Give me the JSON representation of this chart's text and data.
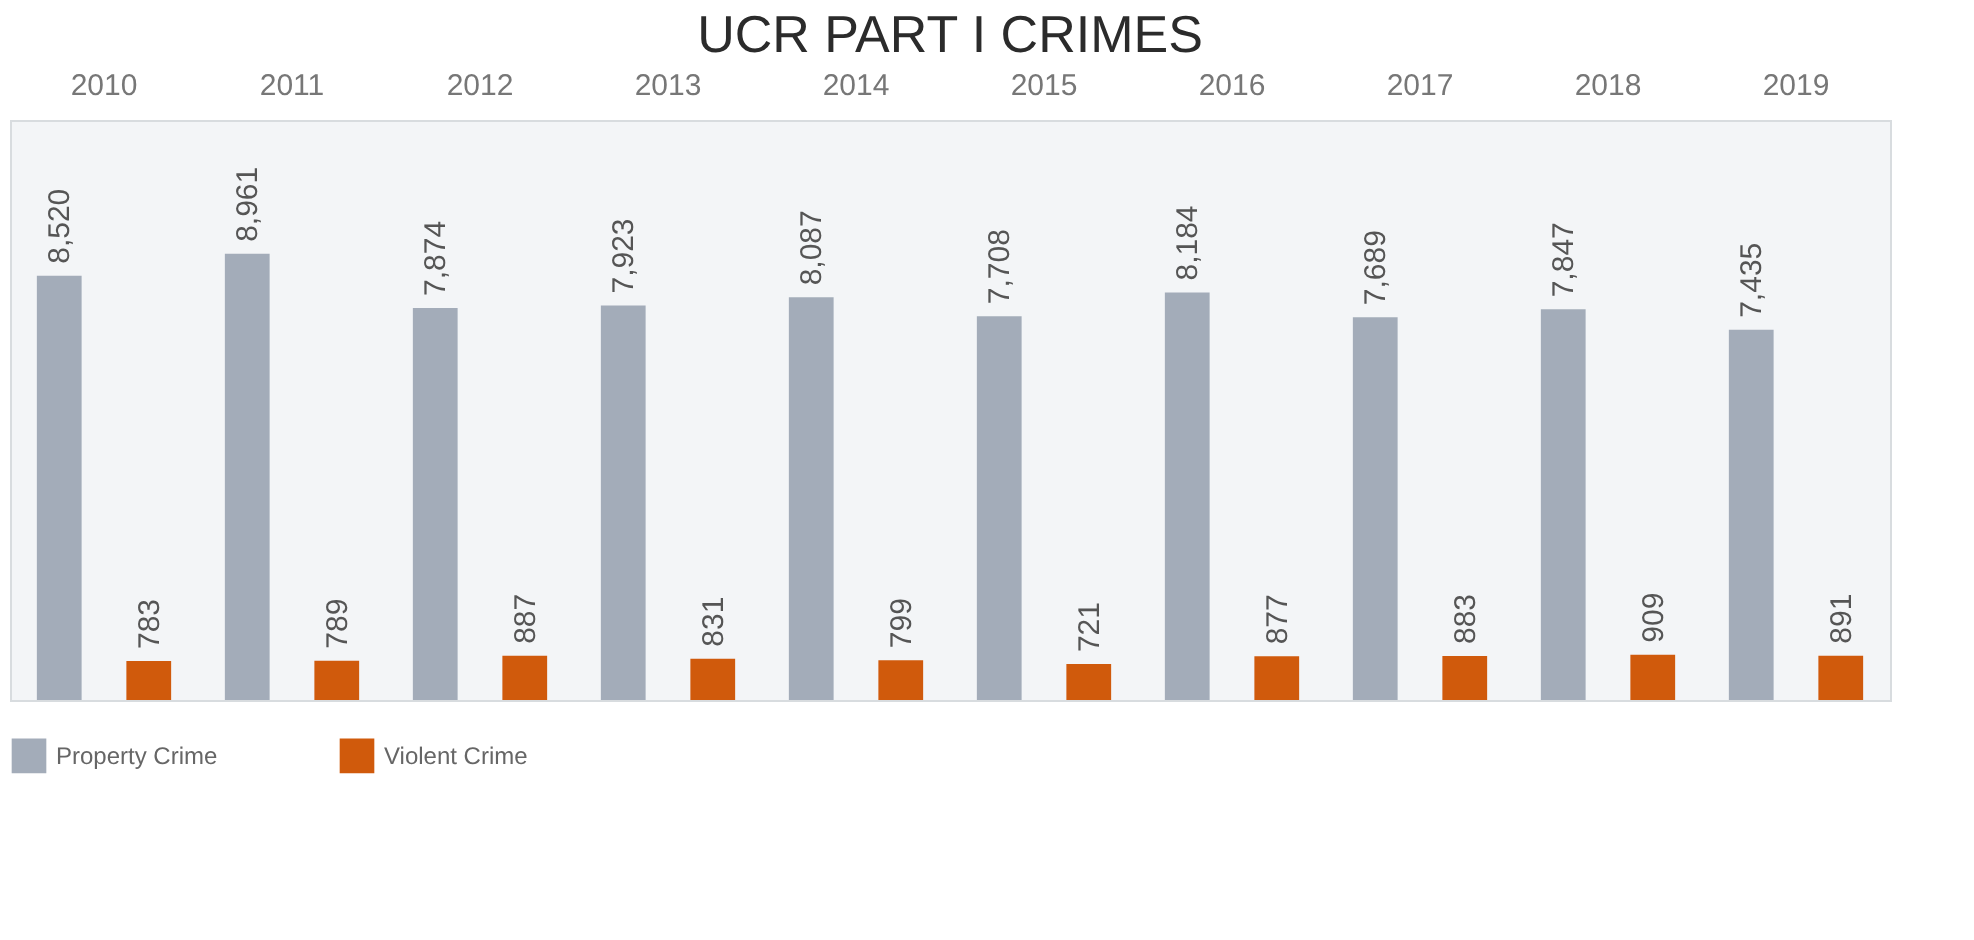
{
  "chart_data": {
    "type": "bar",
    "title": "UCR PART I CRIMES",
    "categories": [
      "2010",
      "2011",
      "2012",
      "2013",
      "2014",
      "2015",
      "2016",
      "2017",
      "2018",
      "2019"
    ],
    "series": [
      {
        "name": "Property Crime",
        "color": "#a3acb9",
        "values": [
          8520,
          8961,
          7874,
          7923,
          8087,
          7708,
          8184,
          7689,
          7847,
          7435
        ],
        "value_labels": [
          "8,520",
          "8,961",
          "7,874",
          "7,923",
          "8,087",
          "7,708",
          "8,184",
          "7,689",
          "7,847",
          "7,435"
        ]
      },
      {
        "name": "Violent Crime",
        "color": "#d05a0c",
        "values": [
          783,
          789,
          887,
          831,
          799,
          721,
          877,
          883,
          909,
          891
        ]
      }
    ],
    "data_labels": true,
    "legend": "bottom left",
    "grid": false
  }
}
